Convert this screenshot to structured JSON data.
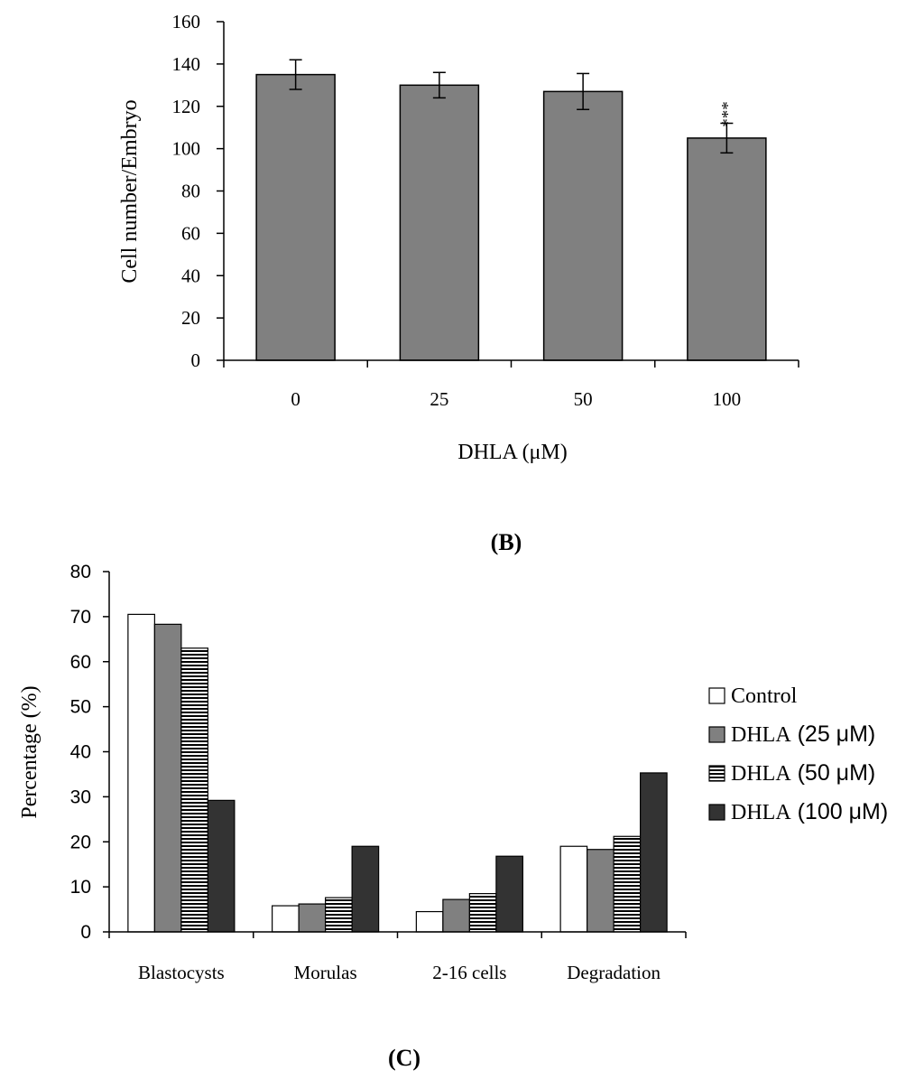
{
  "chart_data": [
    {
      "type": "bar",
      "title": "",
      "xlabel": "DHLA (μM)",
      "ylabel": "Cell number/Embryo",
      "ylim": [
        0,
        160
      ],
      "yticks": [
        "0",
        "20",
        "40",
        "60",
        "80",
        "100",
        "120",
        "140",
        "160"
      ],
      "categories": [
        "0",
        "25",
        "50",
        "100"
      ],
      "values": [
        135,
        130,
        127,
        105
      ],
      "errors": [
        7,
        6,
        8.5,
        7
      ],
      "annotations": [
        "",
        "",
        "",
        "***"
      ],
      "bar_color": "#808080",
      "grid": false
    },
    {
      "type": "bar",
      "title": "",
      "xlabel": "",
      "ylabel": "Percentage (%)",
      "ylim": [
        0,
        80
      ],
      "yticks": [
        "0",
        "10",
        "20",
        "30",
        "40",
        "50",
        "60",
        "70",
        "80"
      ],
      "categories": [
        "Blastocysts",
        "Morulas",
        "2-16 cells",
        "Degradation"
      ],
      "series": [
        {
          "name": "Control",
          "legend_main": "Control",
          "legend_unit": "",
          "values": [
            70.5,
            5.8,
            4.5,
            19
          ],
          "color": "#ffffff",
          "pattern": "solid"
        },
        {
          "name": "DHLA (25 μM)",
          "legend_main": "DHLA",
          "legend_unit": " (25 μM)",
          "values": [
            68.3,
            6.2,
            7.2,
            18.3
          ],
          "color": "#808080",
          "pattern": "solid"
        },
        {
          "name": "DHLA (50 μM)",
          "legend_main": "DHLA",
          "legend_unit": " (50 μM)",
          "values": [
            63,
            7.6,
            8.5,
            21.2
          ],
          "color": "#ffffff",
          "pattern": "hstripes"
        },
        {
          "name": "DHLA (100 μM)",
          "legend_main": "DHLA",
          "legend_unit": " (100 μM)",
          "values": [
            29.2,
            19,
            16.8,
            35.3
          ],
          "color": "#333333",
          "pattern": "solid"
        }
      ],
      "legend_position": "right",
      "grid": false
    }
  ],
  "labels": {
    "panel_b": "(B)",
    "panel_c": "(C)"
  }
}
